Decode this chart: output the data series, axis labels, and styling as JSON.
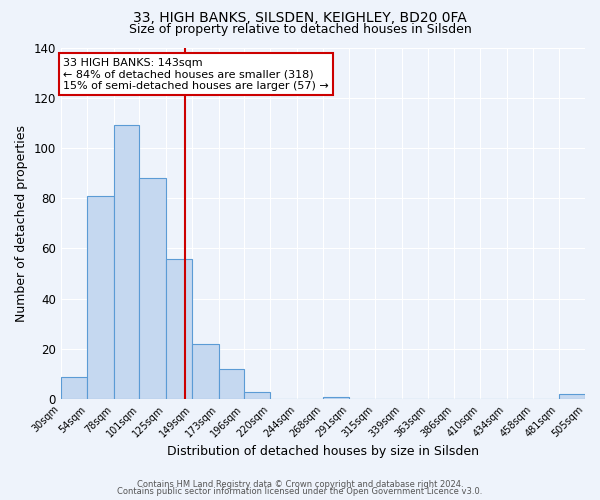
{
  "title": "33, HIGH BANKS, SILSDEN, KEIGHLEY, BD20 0FA",
  "subtitle": "Size of property relative to detached houses in Silsden",
  "xlabel": "Distribution of detached houses by size in Silsden",
  "ylabel": "Number of detached properties",
  "bin_edges": [
    30,
    54,
    78,
    101,
    125,
    149,
    173,
    196,
    220,
    244,
    268,
    291,
    315,
    339,
    363,
    386,
    410,
    434,
    458,
    481,
    505
  ],
  "bar_heights": [
    9,
    81,
    109,
    88,
    56,
    22,
    12,
    3,
    0,
    0,
    1,
    0,
    0,
    0,
    0,
    0,
    0,
    0,
    0,
    2
  ],
  "bar_color": "#c5d8f0",
  "bar_edge_color": "#5b9bd5",
  "property_value": 143,
  "vline_color": "#cc0000",
  "annotation_text": "33 HIGH BANKS: 143sqm\n← 84% of detached houses are smaller (318)\n15% of semi-detached houses are larger (57) →",
  "annotation_box_color": "#ffffff",
  "annotation_box_edge_color": "#cc0000",
  "ylim": [
    0,
    140
  ],
  "yticks": [
    0,
    20,
    40,
    60,
    80,
    100,
    120,
    140
  ],
  "footer_line1": "Contains HM Land Registry data © Crown copyright and database right 2024.",
  "footer_line2": "Contains public sector information licensed under the Open Government Licence v3.0.",
  "background_color": "#eef3fb",
  "grid_color": "#ffffff",
  "tick_labels": [
    "30sqm",
    "54sqm",
    "78sqm",
    "101sqm",
    "125sqm",
    "149sqm",
    "173sqm",
    "196sqm",
    "220sqm",
    "244sqm",
    "268sqm",
    "291sqm",
    "315sqm",
    "339sqm",
    "363sqm",
    "386sqm",
    "410sqm",
    "434sqm",
    "458sqm",
    "481sqm",
    "505sqm"
  ]
}
